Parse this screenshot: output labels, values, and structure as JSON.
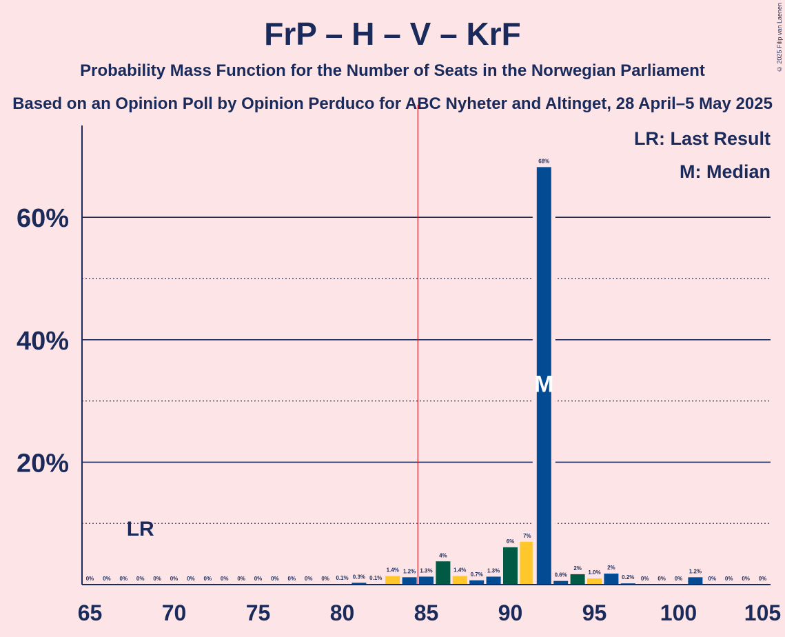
{
  "header": {
    "title": "FrP – H – V – KrF",
    "subtitle": "Probability Mass Function for the Number of Seats in the Norwegian Parliament",
    "source": "Based on an Opinion Poll by Opinion Perduco for ABC Nyheter and Altinget, 28 April–5 May 2025",
    "copyright": "© 2025 Filip van Laenen"
  },
  "legend": {
    "lr": "LR: Last Result",
    "m": "M: Median"
  },
  "markers": {
    "lr_label": "LR",
    "lr_seat": 68,
    "median_label": "M",
    "median_seat": 92,
    "majority_seat": 85
  },
  "colors": {
    "blue": "#034c94",
    "green": "#005a44",
    "yellow": "#ffc72c",
    "text": "#1a2a5a",
    "majority_line": "#e0202a",
    "background": "#fde4e6"
  },
  "chart_data": {
    "type": "bar",
    "xlim": [
      65,
      105
    ],
    "ylim": [
      0,
      75
    ],
    "y_ticks": [
      {
        "value": 20,
        "label": "20%"
      },
      {
        "value": 40,
        "label": "40%"
      },
      {
        "value": 60,
        "label": "60%"
      }
    ],
    "y_dotted": [
      10,
      30,
      50
    ],
    "x_ticks": [
      {
        "value": 65,
        "label": "65"
      },
      {
        "value": 70,
        "label": "70"
      },
      {
        "value": 75,
        "label": "75"
      },
      {
        "value": 80,
        "label": "80"
      },
      {
        "value": 85,
        "label": "85"
      },
      {
        "value": 90,
        "label": "90"
      },
      {
        "value": 95,
        "label": "95"
      },
      {
        "value": 100,
        "label": "100"
      },
      {
        "value": 105,
        "label": "105"
      }
    ],
    "bars": [
      {
        "seat": 65,
        "value": 0,
        "label": "0%",
        "color": "blue"
      },
      {
        "seat": 66,
        "value": 0,
        "label": "0%",
        "color": "blue"
      },
      {
        "seat": 67,
        "value": 0,
        "label": "0%",
        "color": "blue"
      },
      {
        "seat": 68,
        "value": 0,
        "label": "0%",
        "color": "blue"
      },
      {
        "seat": 69,
        "value": 0,
        "label": "0%",
        "color": "blue"
      },
      {
        "seat": 70,
        "value": 0,
        "label": "0%",
        "color": "blue"
      },
      {
        "seat": 71,
        "value": 0,
        "label": "0%",
        "color": "blue"
      },
      {
        "seat": 72,
        "value": 0,
        "label": "0%",
        "color": "blue"
      },
      {
        "seat": 73,
        "value": 0,
        "label": "0%",
        "color": "blue"
      },
      {
        "seat": 74,
        "value": 0,
        "label": "0%",
        "color": "blue"
      },
      {
        "seat": 75,
        "value": 0,
        "label": "0%",
        "color": "blue"
      },
      {
        "seat": 76,
        "value": 0,
        "label": "0%",
        "color": "blue"
      },
      {
        "seat": 77,
        "value": 0,
        "label": "0%",
        "color": "blue"
      },
      {
        "seat": 78,
        "value": 0,
        "label": "0%",
        "color": "blue"
      },
      {
        "seat": 79,
        "value": 0,
        "label": "0%",
        "color": "blue"
      },
      {
        "seat": 80,
        "value": 0.1,
        "label": "0.1%",
        "color": "blue"
      },
      {
        "seat": 81,
        "value": 0.3,
        "label": "0.3%",
        "color": "blue"
      },
      {
        "seat": 82,
        "value": 0.1,
        "label": "0.1%",
        "color": "blue"
      },
      {
        "seat": 83,
        "value": 1.4,
        "label": "1.4%",
        "color": "yellow"
      },
      {
        "seat": 84,
        "value": 1.2,
        "label": "1.2%",
        "color": "blue"
      },
      {
        "seat": 85,
        "value": 1.3,
        "label": "1.3%",
        "color": "blue"
      },
      {
        "seat": 86,
        "value": 3.8,
        "label": "4%",
        "color": "green"
      },
      {
        "seat": 87,
        "value": 1.4,
        "label": "1.4%",
        "color": "yellow"
      },
      {
        "seat": 88,
        "value": 0.7,
        "label": "0.7%",
        "color": "blue"
      },
      {
        "seat": 89,
        "value": 1.3,
        "label": "1.3%",
        "color": "blue"
      },
      {
        "seat": 90,
        "value": 6.1,
        "label": "6%",
        "color": "green"
      },
      {
        "seat": 91,
        "value": 7.0,
        "label": "7%",
        "color": "yellow"
      },
      {
        "seat": 92,
        "value": 68.2,
        "label": "68%",
        "color": "blue"
      },
      {
        "seat": 93,
        "value": 0.6,
        "label": "0.6%",
        "color": "blue"
      },
      {
        "seat": 94,
        "value": 1.7,
        "label": "2%",
        "color": "green"
      },
      {
        "seat": 95,
        "value": 1.0,
        "label": "1.0%",
        "color": "yellow"
      },
      {
        "seat": 96,
        "value": 1.8,
        "label": "2%",
        "color": "blue"
      },
      {
        "seat": 97,
        "value": 0.2,
        "label": "0.2%",
        "color": "blue"
      },
      {
        "seat": 98,
        "value": 0,
        "label": "0%",
        "color": "blue"
      },
      {
        "seat": 99,
        "value": 0,
        "label": "0%",
        "color": "blue"
      },
      {
        "seat": 100,
        "value": 0,
        "label": "0%",
        "color": "blue"
      },
      {
        "seat": 101,
        "value": 1.2,
        "label": "1.2%",
        "color": "blue"
      },
      {
        "seat": 102,
        "value": 0,
        "label": "0%",
        "color": "blue"
      },
      {
        "seat": 103,
        "value": 0,
        "label": "0%",
        "color": "blue"
      },
      {
        "seat": 104,
        "value": 0,
        "label": "0%",
        "color": "blue"
      },
      {
        "seat": 105,
        "value": 0,
        "label": "0%",
        "color": "blue"
      }
    ]
  }
}
